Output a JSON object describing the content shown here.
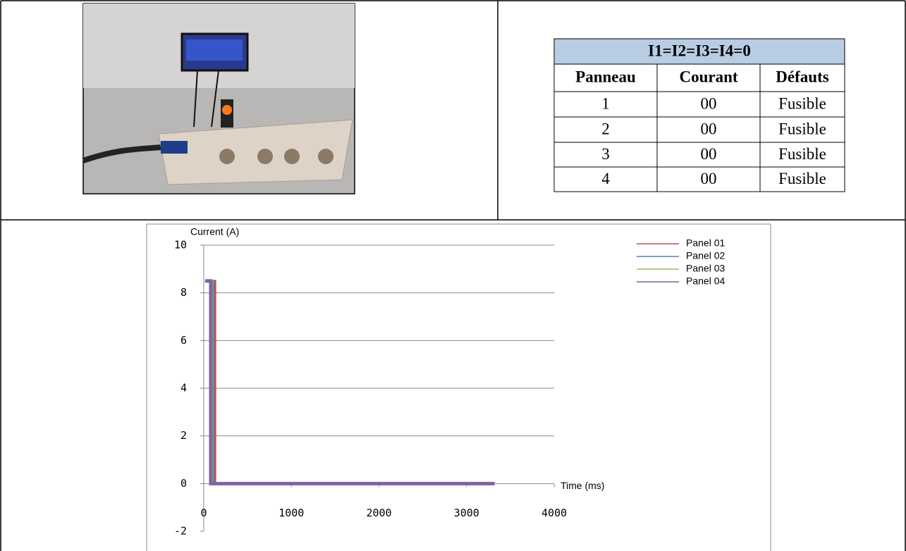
{
  "table": {
    "title": "I1=I2=I3=I4=0",
    "header": [
      "Panneau",
      "Courant",
      "Défauts"
    ],
    "rows": [
      [
        "1",
        "00",
        "Fusible"
      ],
      [
        "2",
        "00",
        "Fusible"
      ],
      [
        "3",
        "00",
        "Fusible"
      ],
      [
        "4",
        "00",
        "Fusible"
      ]
    ]
  },
  "chart_data": {
    "type": "line",
    "y_label": "Current (A)",
    "x_label": "Time (ms)",
    "series": [
      {
        "name": "Panel 01",
        "color": "#c0504d",
        "x": [
          30,
          130,
          130,
          3320
        ],
        "values": [
          8.5,
          8.5,
          0,
          0
        ]
      },
      {
        "name": "Panel 02",
        "color": "#4f81bd",
        "x": [
          25,
          110,
          110,
          3320
        ],
        "values": [
          8.5,
          8.5,
          0,
          0
        ]
      },
      {
        "name": "Panel 03",
        "color": "#9bbb59",
        "x": [
          20,
          95,
          95,
          3320
        ],
        "values": [
          8.5,
          8.5,
          0,
          0
        ]
      },
      {
        "name": "Panel 04",
        "color": "#8064a2",
        "x": [
          15,
          80,
          80,
          3320
        ],
        "values": [
          8.5,
          8.5,
          0,
          0
        ]
      }
    ],
    "xlim": [
      0,
      4000
    ],
    "xticks": [
      0,
      1000,
      2000,
      3000,
      4000
    ],
    "ylim": [
      -2,
      10
    ],
    "yticks": [
      -2,
      0,
      2,
      4,
      6,
      8,
      10
    ],
    "grid": true,
    "legend": "top-right"
  }
}
